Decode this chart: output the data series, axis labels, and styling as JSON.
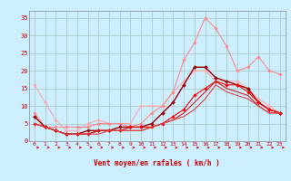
{
  "bg_color": "#cceeff",
  "grid_color": "#aacccc",
  "xlabel": "Vent moyen/en rafales ( km/h )",
  "xlabel_color": "#cc0000",
  "tick_color": "#cc0000",
  "xlim": [
    -0.5,
    23.5
  ],
  "ylim": [
    0,
    37
  ],
  "yticks": [
    0,
    5,
    10,
    15,
    20,
    25,
    30,
    35
  ],
  "xticks": [
    0,
    1,
    2,
    3,
    4,
    5,
    6,
    7,
    8,
    9,
    10,
    11,
    12,
    13,
    14,
    15,
    16,
    17,
    18,
    19,
    20,
    21,
    22,
    23
  ],
  "series": [
    {
      "x": [
        0,
        1,
        2,
        3,
        4,
        5,
        6,
        7,
        8,
        9,
        10,
        11,
        12,
        13,
        14,
        15,
        16,
        17,
        18,
        19,
        20,
        21,
        22,
        23
      ],
      "y": [
        16,
        11,
        6,
        3,
        3,
        5,
        6,
        5,
        5,
        5,
        10,
        10,
        10,
        14,
        17,
        20,
        20,
        17,
        17,
        17,
        15,
        12,
        10,
        8
      ],
      "color": "#ffaaaa",
      "lw": 0.8,
      "marker": "D",
      "ms": 1.8
    },
    {
      "x": [
        0,
        1,
        2,
        3,
        4,
        5,
        6,
        7,
        8,
        9,
        10,
        11,
        12,
        13,
        14,
        15,
        16,
        17,
        18,
        19,
        20,
        21,
        22,
        23
      ],
      "y": [
        8,
        4,
        4,
        4,
        4,
        4,
        5,
        5,
        5,
        4,
        5,
        8,
        10,
        14,
        23,
        28,
        35,
        32,
        27,
        20,
        21,
        24,
        20,
        19
      ],
      "color": "#ff8888",
      "lw": 0.8,
      "marker": "D",
      "ms": 1.8
    },
    {
      "x": [
        0,
        1,
        2,
        3,
        4,
        5,
        6,
        7,
        8,
        9,
        10,
        11,
        12,
        13,
        14,
        15,
        16,
        17,
        18,
        19,
        20,
        21,
        22,
        23
      ],
      "y": [
        7,
        4,
        3,
        2,
        2,
        3,
        3,
        3,
        4,
        4,
        4,
        5,
        8,
        11,
        16,
        21,
        21,
        18,
        17,
        16,
        15,
        11,
        9,
        8
      ],
      "color": "#990000",
      "lw": 1.0,
      "marker": "D",
      "ms": 2.0
    },
    {
      "x": [
        0,
        1,
        2,
        3,
        4,
        5,
        6,
        7,
        8,
        9,
        10,
        11,
        12,
        13,
        14,
        15,
        16,
        17,
        18,
        19,
        20,
        21,
        22,
        23
      ],
      "y": [
        5,
        4,
        3,
        2,
        2,
        2,
        3,
        3,
        3,
        4,
        4,
        4,
        5,
        7,
        9,
        13,
        15,
        17,
        16,
        16,
        14,
        11,
        9,
        8
      ],
      "color": "#ff0000",
      "lw": 0.8,
      "marker": "D",
      "ms": 1.8
    },
    {
      "x": [
        0,
        1,
        2,
        3,
        4,
        5,
        6,
        7,
        8,
        9,
        10,
        11,
        12,
        13,
        14,
        15,
        16,
        17,
        18,
        19,
        20,
        21,
        22,
        23
      ],
      "y": [
        5,
        4,
        3,
        2,
        2,
        2,
        3,
        3,
        3,
        3,
        3,
        4,
        5,
        6,
        8,
        11,
        14,
        17,
        15,
        14,
        13,
        10,
        8,
        8
      ],
      "color": "#cc2222",
      "lw": 0.8,
      "marker": null,
      "ms": 0
    },
    {
      "x": [
        0,
        1,
        2,
        3,
        4,
        5,
        6,
        7,
        8,
        9,
        10,
        11,
        12,
        13,
        14,
        15,
        16,
        17,
        18,
        19,
        20,
        21,
        22,
        23
      ],
      "y": [
        5,
        4,
        3,
        2,
        2,
        2,
        2,
        3,
        3,
        3,
        3,
        4,
        5,
        6,
        7,
        9,
        12,
        16,
        14,
        13,
        12,
        10,
        8,
        8
      ],
      "color": "#dd4444",
      "lw": 0.8,
      "marker": null,
      "ms": 0
    }
  ]
}
